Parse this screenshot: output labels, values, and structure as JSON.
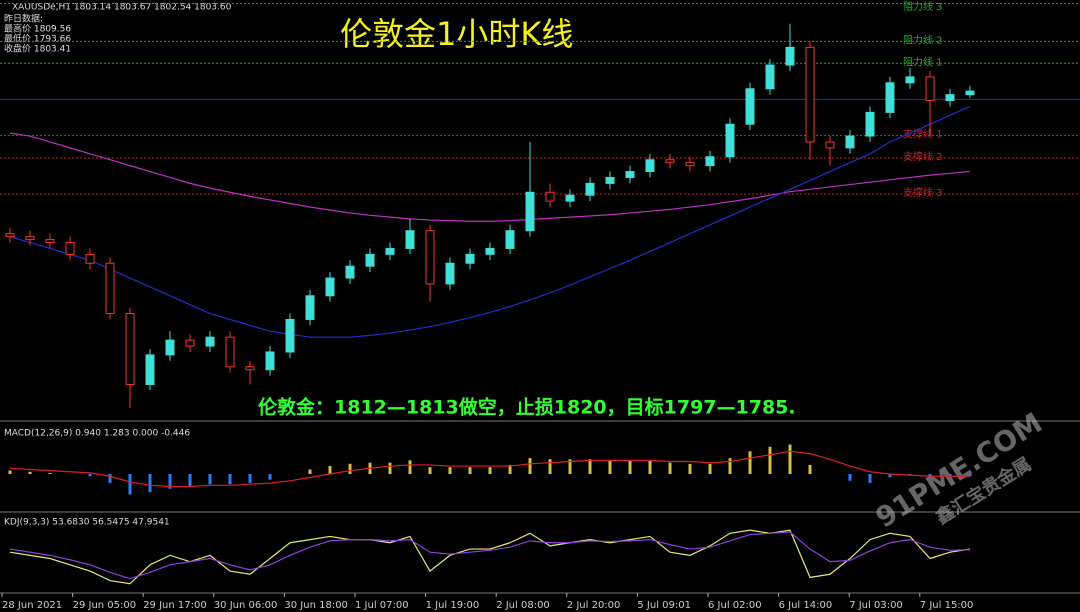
{
  "header": {
    "symbol": "XAUUSDe,H1  1803.14 1803.67 1802.54 1803.60",
    "prev_title": "昨日数据:",
    "prev_high": "最高价 1809.56",
    "prev_low": "最低价 1793.66",
    "prev_close": "收盘价 1803.41"
  },
  "watermark": [
    "91PME.COM",
    "鑫汇宝贵金属"
  ],
  "chart_data": [
    {
      "type": "candlestick",
      "title": "伦敦金1小时K线",
      "annotation": "伦敦金：1812—1813做空，止损1820，目标1797—1785.",
      "up_color": "#3fe0d8",
      "down_color": "#ff3030",
      "ylim": [
        1748,
        1819
      ],
      "x_labels": [
        "28 Jun 2021",
        "29 Jun 05:00",
        "29 Jun 17:00",
        "30 Jun 06:00",
        "30 Jun 18:00",
        "1 Jul 07:00",
        "1 Jul 19:00",
        "2 Jul 08:00",
        "2 Jul 20:00",
        "5 Jul 09:01",
        "6 Jul 02:00",
        "6 Jul 14:00",
        "7 Jul 03:00",
        "7 Jul 15:00"
      ],
      "open": [
        1779.5,
        1779,
        1778.5,
        1778,
        1776,
        1774.5,
        1766,
        1754,
        1759,
        1761.5,
        1760.5,
        1762,
        1757,
        1756.5,
        1759.5,
        1765,
        1769,
        1772,
        1774,
        1776,
        1777,
        1780,
        1771,
        1774.5,
        1776,
        1777,
        1780,
        1786.5,
        1785,
        1786,
        1788,
        1789,
        1790,
        1792,
        1791.5,
        1791,
        1792.5,
        1798,
        1804,
        1808,
        1811,
        1795,
        1794,
        1796,
        1800,
        1805,
        1806,
        1802,
        1803
      ],
      "high": [
        1780.5,
        1780,
        1779.5,
        1779,
        1777,
        1775.5,
        1767,
        1760,
        1763,
        1762.5,
        1763,
        1763,
        1758,
        1760.5,
        1766,
        1770,
        1773,
        1775,
        1777,
        1778,
        1782,
        1781,
        1775.5,
        1777,
        1778,
        1781,
        1795,
        1788,
        1787,
        1789,
        1790,
        1791,
        1793,
        1793,
        1792.5,
        1793.5,
        1799,
        1805,
        1809,
        1815,
        1812,
        1796,
        1797,
        1801,
        1806,
        1807.5,
        1807,
        1804,
        1804.5
      ],
      "low": [
        1778,
        1777.5,
        1777,
        1775,
        1773.5,
        1765,
        1750,
        1753,
        1758,
        1759.5,
        1759.5,
        1756,
        1754,
        1755.5,
        1758.5,
        1764,
        1768,
        1771,
        1773,
        1775,
        1776,
        1768,
        1770,
        1773.5,
        1775,
        1776,
        1779,
        1784,
        1784,
        1785,
        1787,
        1788,
        1789,
        1790.5,
        1790,
        1790,
        1791.5,
        1797,
        1803,
        1807,
        1792,
        1791,
        1793,
        1795,
        1799,
        1804,
        1796,
        1801,
        1802.5
      ],
      "close": [
        1779,
        1778.5,
        1778,
        1776,
        1774.5,
        1766,
        1754,
        1759,
        1761.5,
        1760.5,
        1762,
        1757,
        1756.5,
        1759.5,
        1765,
        1769,
        1772,
        1774,
        1776,
        1777,
        1780,
        1771,
        1774.5,
        1776,
        1777,
        1780,
        1786.5,
        1785,
        1786,
        1788,
        1789,
        1790,
        1792,
        1791.5,
        1791,
        1792.5,
        1798,
        1804,
        1808,
        1811,
        1795,
        1794,
        1796,
        1800,
        1805,
        1806,
        1802,
        1803,
        1803.6
      ],
      "lines": [
        {
          "color": "#c030c8",
          "values": [
            1796.5,
            1796,
            1795,
            1794,
            1793,
            1792,
            1791,
            1790,
            1789,
            1788,
            1787.2,
            1786.5,
            1785.8,
            1785.2,
            1784.6,
            1784,
            1783.5,
            1783,
            1782.6,
            1782.3,
            1782,
            1781.8,
            1781.7,
            1781.6,
            1781.6,
            1781.7,
            1781.9,
            1782.1,
            1782.3,
            1782.5,
            1782.7,
            1783,
            1783.3,
            1783.6,
            1784,
            1784.4,
            1784.9,
            1785.4,
            1786,
            1786.6,
            1787,
            1787.4,
            1787.8,
            1788.2,
            1788.6,
            1789,
            1789.4,
            1789.7,
            1790
          ]
        },
        {
          "color": "#2030d0",
          "values": [
            1779,
            1778,
            1777,
            1776,
            1775,
            1773.5,
            1772,
            1770.5,
            1769,
            1767.5,
            1766,
            1765,
            1764,
            1763,
            1762.5,
            1762,
            1762,
            1762,
            1762.3,
            1762.7,
            1763.2,
            1763.8,
            1764.5,
            1765.3,
            1766.2,
            1767.2,
            1768.3,
            1769.5,
            1770.8,
            1772.2,
            1773.6,
            1775,
            1776.5,
            1778,
            1779.5,
            1781,
            1782.5,
            1784,
            1785.5,
            1787,
            1788.5,
            1790,
            1791.5,
            1793,
            1795,
            1796.5,
            1798,
            1799.5,
            1801
          ]
        }
      ],
      "levels": [
        {
          "label": "阻力线 3",
          "value": 1818.4,
          "color": "#22b022"
        },
        {
          "label": "阻力线 2",
          "value": 1812,
          "color": "#22b022"
        },
        {
          "label": "阻力线 1",
          "value": 1808.3,
          "color": "#22b022"
        },
        {
          "label": "支撑线 1",
          "value": 1796.1,
          "color": "#d02020"
        },
        {
          "label": "支撑线 2",
          "value": 1792.3,
          "color": "#d02020"
        },
        {
          "label": "支撑线 3",
          "value": 1786.2,
          "color": "#d02020"
        }
      ],
      "base_line": {
        "value": 1802.2,
        "color": "#2030d0"
      }
    },
    {
      "type": "macd",
      "title": "MACD(12,26,9) 0.940 1.283 0.000 -0.446",
      "ylim": [
        -3,
        3
      ],
      "up_color": "#d8c040",
      "down_color": "#2a7fff",
      "signal_color": "#e02020",
      "values": [
        0.3,
        0.2,
        0.1,
        0,
        -0.2,
        -0.8,
        -1.8,
        -1.6,
        -1.3,
        -1.1,
        -0.9,
        -0.9,
        -0.8,
        -0.5,
        0,
        0.4,
        0.7,
        0.9,
        1,
        1,
        1.2,
        0.6,
        0.6,
        0.6,
        0.6,
        0.8,
        1.4,
        1.3,
        1.3,
        1.3,
        1.2,
        1.2,
        1.2,
        1,
        0.9,
        0.9,
        1.4,
        2,
        2.4,
        2.6,
        0.8,
        0,
        -0.6,
        -0.8,
        -0.3,
        -0.1,
        -0.3,
        -0.2,
        -0.2
      ],
      "signal": [
        0.5,
        0.4,
        0.3,
        0.2,
        0.1,
        -0.2,
        -0.7,
        -1,
        -1.1,
        -1.1,
        -1,
        -1,
        -0.9,
        -0.8,
        -0.6,
        -0.3,
        0,
        0.3,
        0.5,
        0.7,
        0.8,
        0.8,
        0.7,
        0.7,
        0.7,
        0.7,
        0.9,
        1,
        1.1,
        1.2,
        1.2,
        1.2,
        1.2,
        1.1,
        1.1,
        1,
        1.1,
        1.4,
        1.7,
        2,
        1.8,
        1.3,
        0.7,
        0.2,
        0,
        -0.1,
        -0.2,
        -0.2,
        -0.2
      ]
    },
    {
      "type": "line",
      "title": "KDJ(9,3,3) 53.6830 56.5475 47.9541",
      "ylim": [
        0,
        100
      ],
      "series": [
        {
          "color": "#e8e870",
          "values": [
            60,
            55,
            50,
            40,
            30,
            15,
            10,
            40,
            55,
            45,
            55,
            30,
            25,
            50,
            75,
            80,
            85,
            80,
            80,
            75,
            85,
            30,
            55,
            65,
            65,
            75,
            90,
            70,
            75,
            80,
            75,
            80,
            85,
            60,
            55,
            70,
            90,
            95,
            90,
            95,
            20,
            25,
            50,
            80,
            90,
            85,
            50,
            60,
            65
          ]
        },
        {
          "color": "#9040e0",
          "values": [
            65,
            60,
            55,
            48,
            40,
            28,
            18,
            28,
            40,
            45,
            50,
            40,
            32,
            40,
            55,
            68,
            78,
            80,
            80,
            78,
            80,
            60,
            57,
            60,
            63,
            68,
            78,
            75,
            75,
            78,
            77,
            78,
            80,
            72,
            65,
            68,
            78,
            88,
            90,
            92,
            65,
            45,
            47,
            62,
            75,
            80,
            68,
            63,
            64
          ]
        }
      ]
    }
  ]
}
